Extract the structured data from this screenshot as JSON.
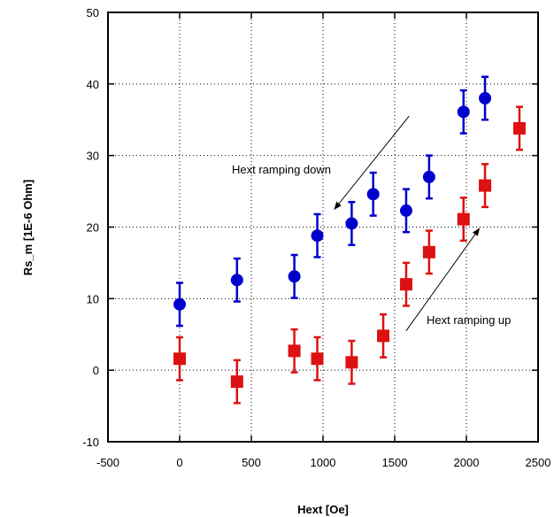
{
  "chart_data": {
    "type": "scatter",
    "title": "",
    "xlabel": "Hext [Oe]",
    "ylabel": "Rs_m [1E-6 Ohm]",
    "xlim": [
      -500,
      2500
    ],
    "ylim": [
      -10,
      50
    ],
    "xticks": [
      -500,
      0,
      500,
      1000,
      1500,
      2000,
      2500
    ],
    "yticks": [
      -10,
      0,
      10,
      20,
      30,
      40,
      50
    ],
    "grid": true,
    "grid_style": "dotted",
    "error_bar": 3,
    "series": [
      {
        "marker": "circle",
        "color": "#0000cc",
        "points": [
          {
            "x": 0,
            "y": 9.2
          },
          {
            "x": 400,
            "y": 12.6
          },
          {
            "x": 800,
            "y": 13.1
          },
          {
            "x": 960,
            "y": 18.8
          },
          {
            "x": 1200,
            "y": 20.5
          },
          {
            "x": 1350,
            "y": 24.6
          },
          {
            "x": 1580,
            "y": 22.3
          },
          {
            "x": 1740,
            "y": 27.0
          },
          {
            "x": 1980,
            "y": 36.1
          },
          {
            "x": 2130,
            "y": 38.0
          }
        ]
      },
      {
        "marker": "square",
        "color": "#dd1111",
        "points": [
          {
            "x": 0,
            "y": 1.6
          },
          {
            "x": 400,
            "y": -1.6
          },
          {
            "x": 800,
            "y": 2.7
          },
          {
            "x": 960,
            "y": 1.6
          },
          {
            "x": 1200,
            "y": 1.1
          },
          {
            "x": 1420,
            "y": 4.8
          },
          {
            "x": 1580,
            "y": 12.0
          },
          {
            "x": 1740,
            "y": 16.5
          },
          {
            "x": 1980,
            "y": 21.1
          },
          {
            "x": 2130,
            "y": 25.8
          },
          {
            "x": 2370,
            "y": 33.8
          }
        ]
      }
    ],
    "annotations": [
      {
        "text": "Hext ramping down",
        "arrow_from": [
          1600,
          35.5
        ],
        "arrow_to": [
          1080,
          22.5
        ]
      },
      {
        "text": "Hext ramping up",
        "arrow_from": [
          1580,
          5.5
        ],
        "arrow_to": [
          2090,
          19.8
        ]
      }
    ]
  }
}
